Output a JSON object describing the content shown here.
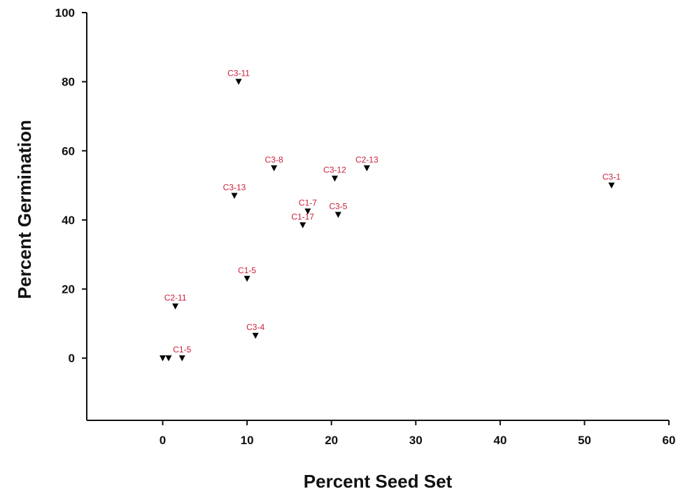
{
  "chart_data": {
    "type": "scatter",
    "title": "",
    "xlabel": "Percent Seed Set",
    "ylabel": "Percent Germination",
    "xlim": [
      -9,
      60
    ],
    "ylim": [
      -18,
      100
    ],
    "xticks": [
      0,
      10,
      20,
      30,
      40,
      50,
      60
    ],
    "yticks": [
      0,
      20,
      40,
      60,
      80,
      100
    ],
    "grid": false,
    "legend": "none",
    "marker_color": "#000000",
    "label_color": "#cc1f3a",
    "points": [
      {
        "label": "C3-11",
        "x": 9.0,
        "y": 80
      },
      {
        "label": "C3-8",
        "x": 13.2,
        "y": 55
      },
      {
        "label": "C2-13",
        "x": 24.2,
        "y": 55
      },
      {
        "label": "C3-12",
        "x": 20.4,
        "y": 52
      },
      {
        "label": "C3-1",
        "x": 53.2,
        "y": 50
      },
      {
        "label": "C3-13",
        "x": 8.5,
        "y": 47
      },
      {
        "label": "C1-7",
        "x": 17.2,
        "y": 42.5
      },
      {
        "label": "C3-5",
        "x": 20.8,
        "y": 41.5
      },
      {
        "label": "C1-17",
        "x": 16.6,
        "y": 38.5
      },
      {
        "label": "C1-5",
        "x": 10.0,
        "y": 23
      },
      {
        "label": "C2-11",
        "x": 1.5,
        "y": 15
      },
      {
        "label": "C3-4",
        "x": 11.0,
        "y": 6.5
      },
      {
        "label": "",
        "x": 0.0,
        "y": 0
      },
      {
        "label": "",
        "x": 0.7,
        "y": 0
      },
      {
        "label": "C1-5",
        "x": 2.3,
        "y": 0
      }
    ]
  }
}
